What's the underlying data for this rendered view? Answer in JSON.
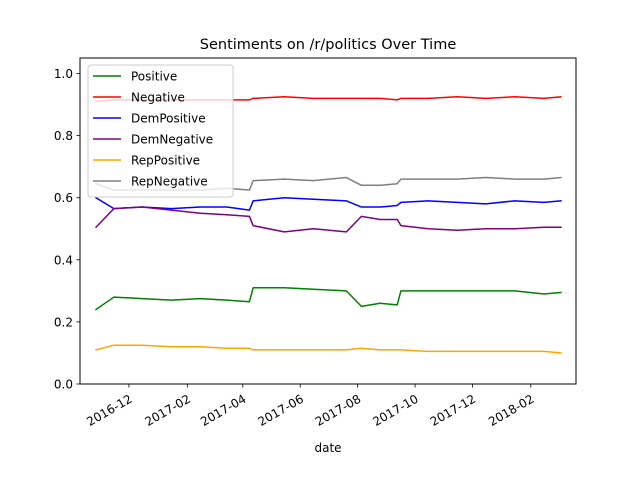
{
  "chart_data": {
    "type": "line",
    "title": "Sentiments on /r/politics Over Time",
    "xlabel": "date",
    "ylabel": "",
    "xlim": [
      "2016-10-10",
      "2018-03-21"
    ],
    "ylim": [
      0.0,
      1.05
    ],
    "yticks": [
      0.0,
      0.2,
      0.4,
      0.6,
      0.8,
      1.0
    ],
    "ytick_labels": [
      "0.0",
      "0.2",
      "0.4",
      "0.6",
      "0.8",
      "1.0"
    ],
    "xticks": [
      "2016-12-01",
      "2017-02-01",
      "2017-04-01",
      "2017-06-01",
      "2017-08-01",
      "2017-10-01",
      "2017-12-01",
      "2018-02-01"
    ],
    "xtick_labels": [
      "2016-12",
      "2017-02",
      "2017-04",
      "2017-06",
      "2017-08",
      "2017-10",
      "2017-12",
      "2018-02"
    ],
    "grid": false,
    "legend_position": "top-left",
    "x": [
      "2016-10-27",
      "2016-11-15",
      "2016-12-15",
      "2017-01-15",
      "2017-02-15",
      "2017-03-15",
      "2017-04-08",
      "2017-04-12",
      "2017-05-15",
      "2017-06-15",
      "2017-07-20",
      "2017-08-05",
      "2017-08-25",
      "2017-09-12",
      "2017-09-16",
      "2017-10-15",
      "2017-11-15",
      "2017-12-15",
      "2018-01-15",
      "2018-02-15",
      "2018-03-05"
    ],
    "series": [
      {
        "name": "Positive",
        "color": "#008000",
        "values": [
          0.24,
          0.28,
          0.275,
          0.27,
          0.275,
          0.27,
          0.265,
          0.31,
          0.31,
          0.305,
          0.3,
          0.25,
          0.26,
          0.255,
          0.3,
          0.3,
          0.3,
          0.3,
          0.3,
          0.29,
          0.295
        ]
      },
      {
        "name": "Negative",
        "color": "#ff0000",
        "values": [
          0.91,
          0.915,
          0.915,
          0.915,
          0.915,
          0.915,
          0.915,
          0.92,
          0.925,
          0.92,
          0.92,
          0.92,
          0.92,
          0.915,
          0.92,
          0.92,
          0.925,
          0.92,
          0.925,
          0.92,
          0.925
        ]
      },
      {
        "name": "DemPositive",
        "color": "#0000ff",
        "values": [
          0.6,
          0.565,
          0.57,
          0.565,
          0.57,
          0.57,
          0.56,
          0.59,
          0.6,
          0.595,
          0.59,
          0.57,
          0.57,
          0.575,
          0.585,
          0.59,
          0.585,
          0.58,
          0.59,
          0.585,
          0.59
        ]
      },
      {
        "name": "DemNegative",
        "color": "#800080",
        "values": [
          0.505,
          0.565,
          0.57,
          0.56,
          0.55,
          0.545,
          0.54,
          0.51,
          0.49,
          0.5,
          0.49,
          0.54,
          0.53,
          0.53,
          0.51,
          0.5,
          0.495,
          0.5,
          0.5,
          0.505,
          0.505
        ]
      },
      {
        "name": "RepPositive",
        "color": "#ffa500",
        "values": [
          0.11,
          0.125,
          0.125,
          0.12,
          0.12,
          0.115,
          0.115,
          0.11,
          0.11,
          0.11,
          0.11,
          0.115,
          0.11,
          0.11,
          0.11,
          0.105,
          0.105,
          0.105,
          0.105,
          0.105,
          0.1
        ]
      },
      {
        "name": "RepNegative",
        "color": "#808080",
        "values": [
          0.645,
          0.625,
          0.625,
          0.625,
          0.625,
          0.63,
          0.625,
          0.655,
          0.66,
          0.655,
          0.665,
          0.64,
          0.64,
          0.645,
          0.66,
          0.66,
          0.66,
          0.665,
          0.66,
          0.66,
          0.665
        ]
      }
    ]
  }
}
